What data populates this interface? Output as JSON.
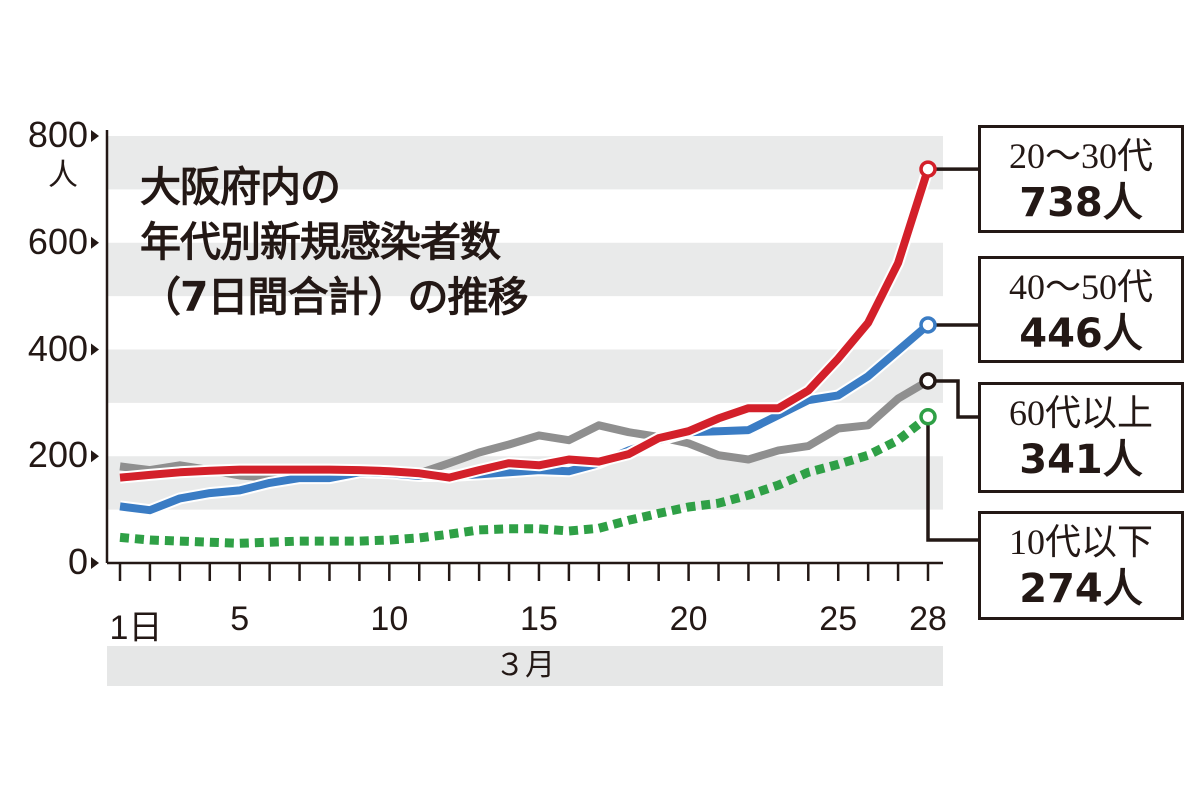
{
  "chart_data": {
    "type": "line",
    "title": "大阪府内の年代別新規感染者数（7日間合計）の推移",
    "title_lines": [
      "大阪府内の",
      "年代別新規感染者数",
      "（7日間合計）の推移"
    ],
    "ylabel": "人",
    "xlabel": "３月",
    "ylim": [
      0,
      800
    ],
    "yticks": [
      0,
      200,
      400,
      600,
      800
    ],
    "ytick_labels": [
      "0",
      "200",
      "400",
      "600",
      "800"
    ],
    "xlim": [
      1,
      28
    ],
    "xticks": [
      1,
      5,
      10,
      15,
      20,
      25,
      28
    ],
    "xtick_labels": [
      "1日",
      "5",
      "10",
      "15",
      "20",
      "25",
      "28"
    ],
    "grid": "horizontal bands",
    "x": [
      1,
      2,
      3,
      4,
      5,
      6,
      7,
      8,
      9,
      10,
      11,
      12,
      13,
      14,
      15,
      16,
      17,
      18,
      19,
      20,
      21,
      22,
      23,
      24,
      25,
      26,
      27,
      28
    ],
    "series": [
      {
        "name": "60代以上",
        "color": "#8f8f8f",
        "style": "solid",
        "end_label": "341人",
        "values": [
          181,
          174,
          183,
          174,
          164,
          160,
          162,
          164,
          166,
          166,
          168,
          187,
          207,
          222,
          239,
          230,
          258,
          245,
          236,
          224,
          202,
          194,
          211,
          219,
          252,
          258,
          308,
          341
        ]
      },
      {
        "name": "40〜50代",
        "color": "#3a7cc4",
        "style": "solid",
        "end_label": "446人",
        "values": [
          106,
          99,
          121,
          131,
          136,
          150,
          159,
          159,
          170,
          168,
          163,
          163,
          166,
          170,
          174,
          172,
          187,
          211,
          230,
          245,
          247,
          249,
          277,
          305,
          314,
          350,
          398,
          446
        ]
      },
      {
        "name": "20〜30代",
        "color": "#d3202a",
        "style": "solid",
        "end_label": "738人",
        "values": [
          160,
          165,
          170,
          173,
          175,
          175,
          175,
          175,
          174,
          172,
          168,
          160,
          174,
          187,
          183,
          194,
          190,
          204,
          234,
          247,
          271,
          290,
          290,
          323,
          383,
          450,
          562,
          738
        ]
      },
      {
        "name": "10代以下",
        "color": "#2fa046",
        "style": "dotted",
        "end_label": "274人",
        "values": [
          48,
          43,
          41,
          39,
          37,
          39,
          41,
          41,
          41,
          43,
          47,
          54,
          62,
          64,
          64,
          60,
          65,
          80,
          93,
          105,
          112,
          127,
          146,
          170,
          185,
          202,
          230,
          274
        ]
      }
    ],
    "legend": [
      {
        "group": "20〜30代",
        "value": "738人"
      },
      {
        "group": "40〜50代",
        "value": "446人"
      },
      {
        "group": "60代以上",
        "value": "341人"
      },
      {
        "group": "10代以下",
        "value": "274人"
      }
    ]
  }
}
